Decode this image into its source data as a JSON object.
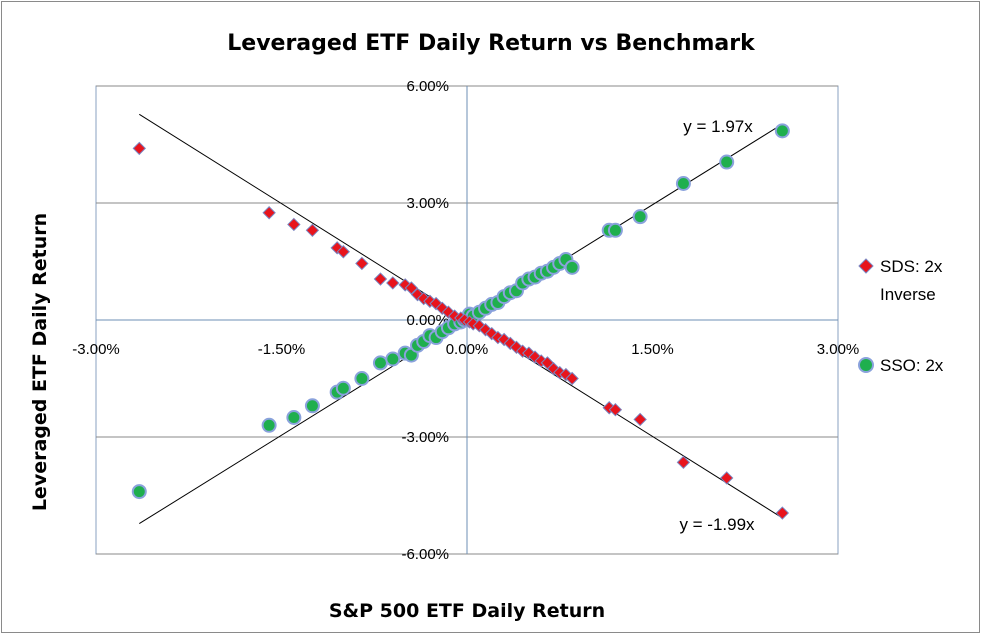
{
  "chart_data": {
    "type": "scatter",
    "title": "Leveraged ETF Daily Return vs Benchmark",
    "xlabel": "S&P 500 ETF Daily Return",
    "ylabel": "Leveraged ETF Daily Return",
    "xlim": [
      -3.0,
      3.0
    ],
    "ylim": [
      -6.0,
      6.0
    ],
    "x_ticks": [
      -3.0,
      -1.5,
      0.0,
      1.5,
      3.0
    ],
    "x_tick_labels": [
      "-3.00%",
      "-1.50%",
      "0.00%",
      "1.50%",
      "3.00%"
    ],
    "y_ticks": [
      6.0,
      3.0,
      0.0,
      -3.0,
      -6.0
    ],
    "y_tick_labels": [
      "6.00%",
      "3.00%",
      "0.00%",
      "-3.00%",
      "-6.00%"
    ],
    "grid": "horizontal",
    "legend_position": "right",
    "x": [
      -2.65,
      -1.6,
      -1.4,
      -1.25,
      -1.05,
      -1.0,
      -0.85,
      -0.7,
      -0.6,
      -0.5,
      -0.45,
      -0.4,
      -0.35,
      -0.3,
      -0.25,
      -0.2,
      -0.15,
      -0.1,
      -0.05,
      -0.02,
      0.02,
      0.05,
      0.1,
      0.15,
      0.2,
      0.25,
      0.3,
      0.35,
      0.4,
      0.45,
      0.5,
      0.55,
      0.6,
      0.65,
      0.7,
      0.75,
      0.8,
      0.85,
      1.15,
      1.2,
      1.4,
      1.75,
      2.1,
      2.55
    ],
    "series": [
      {
        "name": "SDS: 2x Inverse",
        "color": "#e8141c",
        "marker": "diamond",
        "values": [
          4.4,
          2.75,
          2.45,
          2.3,
          1.85,
          1.75,
          1.45,
          1.05,
          0.95,
          0.9,
          0.82,
          0.65,
          0.55,
          0.48,
          0.42,
          0.3,
          0.2,
          0.1,
          0.05,
          0.0,
          -0.05,
          -0.1,
          -0.15,
          -0.25,
          -0.35,
          -0.45,
          -0.5,
          -0.6,
          -0.7,
          -0.8,
          -0.85,
          -0.95,
          -1.05,
          -1.1,
          -1.25,
          -1.35,
          -1.4,
          -1.5,
          -2.25,
          -2.3,
          -2.55,
          -3.65,
          -4.05,
          -4.95
        ]
      },
      {
        "name": "SSO: 2x",
        "color": "#1faf4e",
        "marker": "circle",
        "values": [
          -4.4,
          -2.7,
          -2.5,
          -2.2,
          -1.85,
          -1.75,
          -1.5,
          -1.1,
          -1.0,
          -0.85,
          -0.9,
          -0.65,
          -0.55,
          -0.4,
          -0.45,
          -0.3,
          -0.2,
          -0.1,
          -0.05,
          0.0,
          0.15,
          0.1,
          0.2,
          0.3,
          0.4,
          0.45,
          0.6,
          0.7,
          0.75,
          0.95,
          1.05,
          1.1,
          1.2,
          1.25,
          1.35,
          1.45,
          1.55,
          1.35,
          2.3,
          2.3,
          2.65,
          3.5,
          4.05,
          4.85
        ]
      }
    ],
    "trendlines": [
      {
        "series": "SSO: 2x",
        "slope": 1.97,
        "label": "y = 1.97x"
      },
      {
        "series": "SDS: 2x Inverse",
        "slope": -1.99,
        "label": "y = -1.99x"
      }
    ],
    "legend": {
      "sds_line1": "SDS: 2x",
      "sds_line2": "Inverse",
      "sso_line1": "SSO: 2x"
    }
  }
}
